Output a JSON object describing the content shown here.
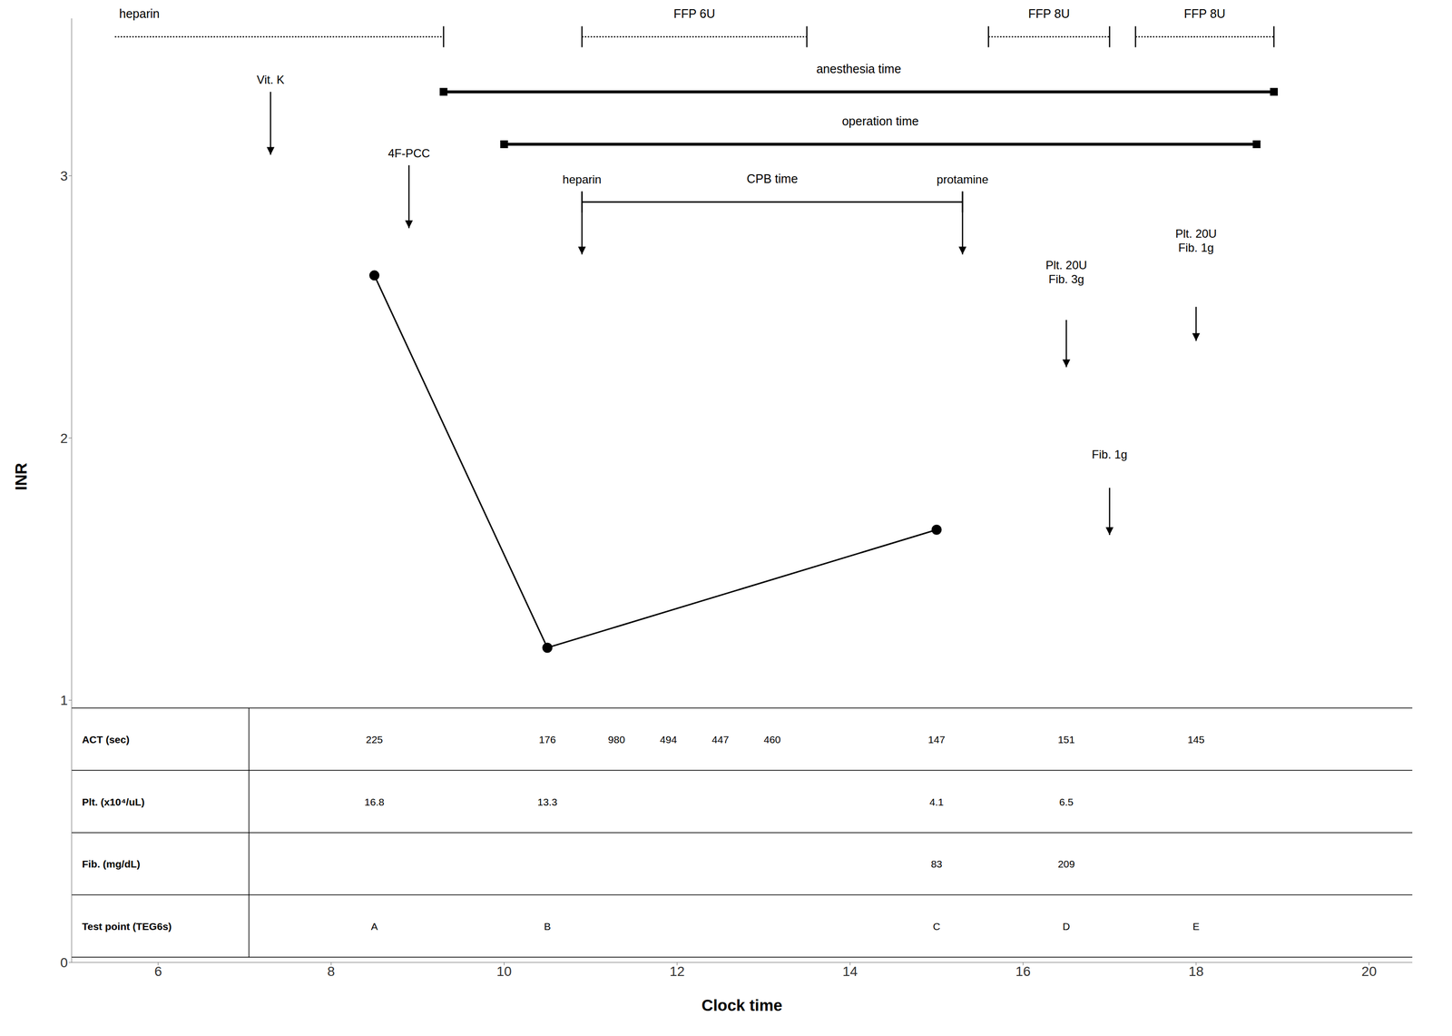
{
  "chart_data": {
    "type": "line",
    "xlabel": "Clock time",
    "ylabel": "INR",
    "xlim": [
      5,
      20.5
    ],
    "ylim": [
      0,
      3.6
    ],
    "xticks": [
      6,
      8,
      10,
      12,
      14,
      16,
      18,
      20
    ],
    "yticks": [
      0,
      1,
      2,
      3
    ],
    "x": [
      8.5,
      10.5,
      15.0
    ],
    "values": [
      2.62,
      1.2,
      1.65
    ],
    "color": "#000000",
    "marker": "circle",
    "intervals": [
      [
        {
          "label": "heparin",
          "start": 5.5,
          "end": 9.3,
          "line_style": "dotted",
          "marker": "end_tick"
        },
        {
          "label": "FFP 6U",
          "start": 10.9,
          "end": 13.5,
          "line_style": "dotted",
          "marker": "tick"
        },
        {
          "label": "FFP 8U",
          "start": 15.6,
          "end": 17.0,
          "line_style": "dotted",
          "marker": "tick"
        },
        {
          "label": "FFP 8U",
          "start": 17.3,
          "end": 18.9,
          "line_style": "dotted",
          "marker": "tick"
        }
      ],
      [
        {
          "label": "anesthesia time",
          "start": 9.3,
          "end": 18.9,
          "line_style": "solid",
          "marker": "square"
        }
      ],
      [
        {
          "label": "operation time",
          "start": 10.0,
          "end": 18.7,
          "line_style": "solid",
          "marker": "square"
        }
      ],
      [
        {
          "label": "CPB time",
          "start": 10.9,
          "end": 15.3,
          "line_style": "solid",
          "marker": "tick"
        }
      ]
    ],
    "annotations": [
      {
        "text": "Vit. K",
        "x": 7.3
      },
      {
        "text": "4F-PCC",
        "x": 8.9
      },
      {
        "text": "heparin",
        "x": 10.9
      },
      {
        "text": "protamine",
        "x": 15.3
      },
      {
        "text": "Plt. 20U\nFib. 3g",
        "x": 16.5
      },
      {
        "text": "Fib. 1g",
        "x": 17.0
      },
      {
        "text": "Plt. 20U\nFib. 1g",
        "x": 18.0
      }
    ],
    "table": {
      "x": [
        8.5,
        10.5,
        11.3,
        11.9,
        12.5,
        13.1,
        15.0,
        16.5,
        18.0
      ],
      "rows": [
        {
          "label": "ACT (sec)",
          "values": [
            225,
            176,
            980,
            494,
            447,
            460,
            147,
            151,
            145
          ]
        },
        {
          "label": "Plt. (x10⁴/uL)",
          "values": [
            16.8,
            13.3,
            null,
            null,
            null,
            null,
            4.1,
            6.5,
            null
          ]
        },
        {
          "label": "Fib. (mg/dL)",
          "values": [
            null,
            null,
            null,
            null,
            null,
            null,
            83,
            209,
            null
          ]
        },
        {
          "label": "Test point (TEG6s)",
          "values": [
            "A",
            "B",
            null,
            null,
            null,
            null,
            "C",
            "D",
            "E"
          ]
        }
      ]
    }
  }
}
